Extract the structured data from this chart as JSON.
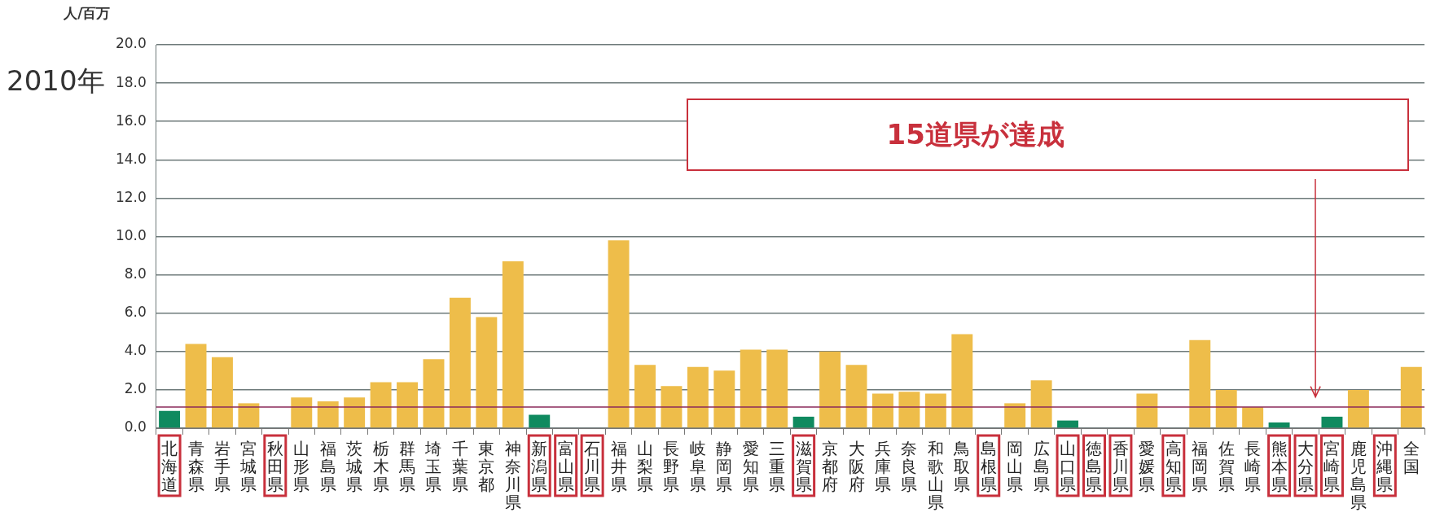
{
  "chart_data": {
    "type": "bar",
    "title": "2010年",
    "ylabel": "人/百万",
    "categories": [
      "北海道",
      "青森県",
      "岩手県",
      "宮城県",
      "秋田県",
      "山形県",
      "福島県",
      "茨城県",
      "栃木県",
      "群馬県",
      "埼玉県",
      "千葉県",
      "東京都",
      "神奈川県",
      "新潟県",
      "富山県",
      "石川県",
      "福井県",
      "山梨県",
      "長野県",
      "岐阜県",
      "静岡県",
      "愛知県",
      "三重県",
      "滋賀県",
      "京都府",
      "大阪府",
      "兵庫県",
      "奈良県",
      "和歌山県",
      "鳥取県",
      "島根県",
      "岡山県",
      "広島県",
      "山口県",
      "徳島県",
      "香川県",
      "愛媛県",
      "高知県",
      "福岡県",
      "佐賀県",
      "長崎県",
      "熊本県",
      "大分県",
      "宮崎県",
      "鹿児島県",
      "沖縄県",
      "全国"
    ],
    "values": [
      0.9,
      4.4,
      3.7,
      1.3,
      0,
      1.6,
      1.4,
      1.6,
      2.4,
      2.4,
      3.6,
      6.8,
      5.8,
      8.7,
      0.7,
      0,
      0,
      9.8,
      3.3,
      2.2,
      3.2,
      3.0,
      4.1,
      4.1,
      0.6,
      4.0,
      3.3,
      1.8,
      1.9,
      1.8,
      4.9,
      0,
      1.3,
      2.5,
      0.4,
      0,
      0,
      1.8,
      0,
      4.6,
      2.0,
      1.1,
      0.3,
      0,
      0.6,
      2.0,
      0,
      3.2
    ],
    "colors": [
      "#0f8a5f",
      "#eebd4a",
      "#eebd4a",
      "#eebd4a",
      "#eebd4a",
      "#eebd4a",
      "#eebd4a",
      "#eebd4a",
      "#eebd4a",
      "#eebd4a",
      "#eebd4a",
      "#eebd4a",
      "#eebd4a",
      "#eebd4a",
      "#0f8a5f",
      "#eebd4a",
      "#eebd4a",
      "#eebd4a",
      "#eebd4a",
      "#eebd4a",
      "#eebd4a",
      "#eebd4a",
      "#eebd4a",
      "#eebd4a",
      "#0f8a5f",
      "#eebd4a",
      "#eebd4a",
      "#eebd4a",
      "#eebd4a",
      "#eebd4a",
      "#eebd4a",
      "#eebd4a",
      "#eebd4a",
      "#eebd4a",
      "#0f8a5f",
      "#eebd4a",
      "#eebd4a",
      "#eebd4a",
      "#eebd4a",
      "#eebd4a",
      "#eebd4a",
      "#eebd4a",
      "#0f8a5f",
      "#eebd4a",
      "#0f8a5f",
      "#eebd4a",
      "#eebd4a",
      "#eebd4a"
    ],
    "ylim": [
      0,
      20
    ],
    "yticks": [
      {
        "value": 0,
        "label": "0.0"
      },
      {
        "value": 2,
        "label": "2.0"
      },
      {
        "value": 4,
        "label": "4.0"
      },
      {
        "value": 6,
        "label": "6.0"
      },
      {
        "value": 8,
        "label": "8.0"
      },
      {
        "value": 10,
        "label": "10.0"
      },
      {
        "value": 12,
        "label": "12.0"
      },
      {
        "value": 14,
        "label": "14.0"
      },
      {
        "value": 16,
        "label": "16.0"
      },
      {
        "value": 18,
        "label": "18.0"
      },
      {
        "value": 20,
        "label": "20.0"
      }
    ],
    "grid": "y",
    "ref_lines": [
      {
        "axis": "y",
        "value": 1.1,
        "color": "#8b2a5a"
      }
    ],
    "annotations": [
      "15道県が達成"
    ]
  }
}
